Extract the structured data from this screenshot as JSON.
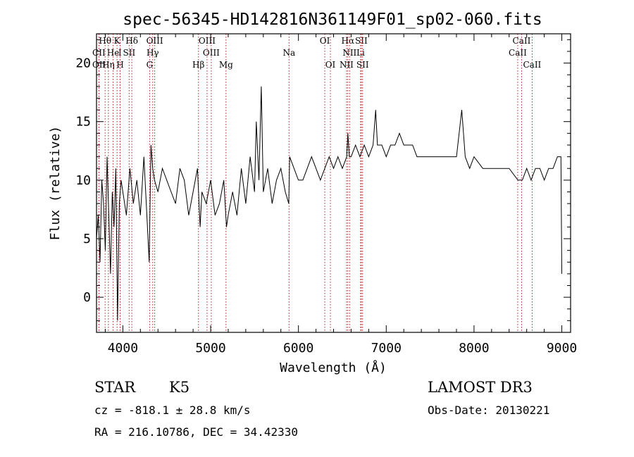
{
  "chart_data": {
    "type": "line",
    "title": "spec-56345-HD142816N361149F01_sp02-060.fits",
    "xlabel": "Wavelength (Å)",
    "ylabel": "Flux (relative)",
    "xlim": [
      3700,
      9100
    ],
    "ylim": [
      -3,
      22.5
    ],
    "x_ticks": [
      4000,
      5000,
      6000,
      7000,
      8000,
      9000
    ],
    "y_ticks": [
      0,
      5,
      10,
      15,
      20
    ],
    "grid": false,
    "series": [
      {
        "name": "flux",
        "x": [
          3700,
          3720,
          3740,
          3760,
          3780,
          3800,
          3820,
          3840,
          3860,
          3880,
          3900,
          3920,
          3940,
          3960,
          3980,
          4000,
          4040,
          4080,
          4120,
          4160,
          4200,
          4240,
          4280,
          4300,
          4320,
          4340,
          4360,
          4400,
          4450,
          4500,
          4550,
          4600,
          4650,
          4700,
          4750,
          4800,
          4850,
          4880,
          4900,
          4950,
          5000,
          5050,
          5100,
          5150,
          5180,
          5200,
          5250,
          5300,
          5350,
          5400,
          5450,
          5500,
          5520,
          5550,
          5577,
          5600,
          5650,
          5700,
          5750,
          5800,
          5850,
          5890,
          5900,
          5950,
          6000,
          6050,
          6100,
          6150,
          6200,
          6250,
          6300,
          6350,
          6400,
          6450,
          6500,
          6550,
          6563,
          6580,
          6600,
          6650,
          6700,
          6750,
          6800,
          6850,
          6880,
          6900,
          6950,
          7000,
          7050,
          7100,
          7150,
          7200,
          7250,
          7300,
          7350,
          7400,
          7500,
          7600,
          7700,
          7800,
          7860,
          7900,
          7950,
          8000,
          8100,
          8200,
          8300,
          8400,
          8500,
          8550,
          8600,
          8650,
          8700,
          8750,
          8800,
          8850,
          8900,
          8950,
          8990,
          9000
        ],
        "y": [
          5,
          7,
          3,
          10,
          8,
          4,
          12,
          7,
          2,
          9,
          6,
          11,
          -2,
          8,
          10,
          9,
          7,
          11,
          8,
          10,
          7,
          12,
          6,
          3,
          13,
          11,
          10,
          9,
          11,
          10,
          9,
          8,
          11,
          10,
          7,
          9,
          11,
          6,
          9,
          8,
          10,
          7,
          8,
          10,
          6,
          7,
          9,
          7,
          11,
          8,
          12,
          9,
          15,
          10,
          18,
          9,
          11,
          8,
          10,
          11,
          9,
          8,
          12,
          11,
          10,
          10,
          11,
          12,
          11,
          10,
          11,
          12,
          11,
          12,
          11,
          12,
          14,
          12,
          12,
          13,
          12,
          13,
          12,
          13,
          16,
          13,
          13,
          12,
          13,
          13,
          14,
          13,
          13,
          13,
          12,
          12,
          12,
          12,
          12,
          12,
          16,
          12,
          11,
          12,
          11,
          11,
          11,
          11,
          10,
          10,
          11,
          10,
          11,
          11,
          10,
          11,
          11,
          12,
          12,
          2
        ]
      }
    ],
    "line_markers": [
      {
        "label": "Hθ",
        "x": 3798,
        "row": 1
      },
      {
        "label": "K",
        "x": 3934,
        "row": 1
      },
      {
        "label": "Hδ",
        "x": 4102,
        "row": 1
      },
      {
        "label": "OIII",
        "x": 4363,
        "row": 1
      },
      {
        "label": "OIII",
        "x": 4959,
        "row": 1
      },
      {
        "label": "OI",
        "x": 6300,
        "row": 1
      },
      {
        "label": "Hα",
        "x": 6563,
        "row": 1
      },
      {
        "label": "SII",
        "x": 6716,
        "row": 1
      },
      {
        "label": "CaII",
        "x": 8542,
        "row": 1
      },
      {
        "label": "CII",
        "x": 3727,
        "row": 2
      },
      {
        "label": "He",
        "x": 3889,
        "row": 2
      },
      {
        "label": "I",
        "x": 3968,
        "row": 2
      },
      {
        "label": "SII",
        "x": 4072,
        "row": 2
      },
      {
        "label": "Hγ",
        "x": 4340,
        "row": 2
      },
      {
        "label": "OIII",
        "x": 5007,
        "row": 2
      },
      {
        "label": "Na",
        "x": 5893,
        "row": 2
      },
      {
        "label": "NII",
        "x": 6583,
        "row": 2
      },
      {
        "label": "Li",
        "x": 6708,
        "row": 2
      },
      {
        "label": "CaII",
        "x": 8498,
        "row": 2
      },
      {
        "label": "OII",
        "x": 3729,
        "row": 3
      },
      {
        "label": "Hη",
        "x": 3835,
        "row": 3
      },
      {
        "label": "H",
        "x": 3970,
        "row": 3
      },
      {
        "label": "G",
        "x": 4305,
        "row": 3
      },
      {
        "label": "Hβ",
        "x": 4861,
        "row": 3
      },
      {
        "label": "Mg",
        "x": 5175,
        "row": 3
      },
      {
        "label": "OI",
        "x": 6364,
        "row": 3
      },
      {
        "label": "NII",
        "x": 6548,
        "row": 3
      },
      {
        "label": "SII",
        "x": 6731,
        "row": 3
      },
      {
        "label": "CaII",
        "x": 8662,
        "row": 3
      }
    ]
  },
  "footer": {
    "object_class": "STAR",
    "subclass": "K5",
    "survey": "LAMOST DR3",
    "cz": "cz = -818.1 ± 28.8 km/s",
    "obs_date": "Obs-Date: 20130221",
    "coords": "RA = 216.10786, DEC =  34.42330"
  }
}
